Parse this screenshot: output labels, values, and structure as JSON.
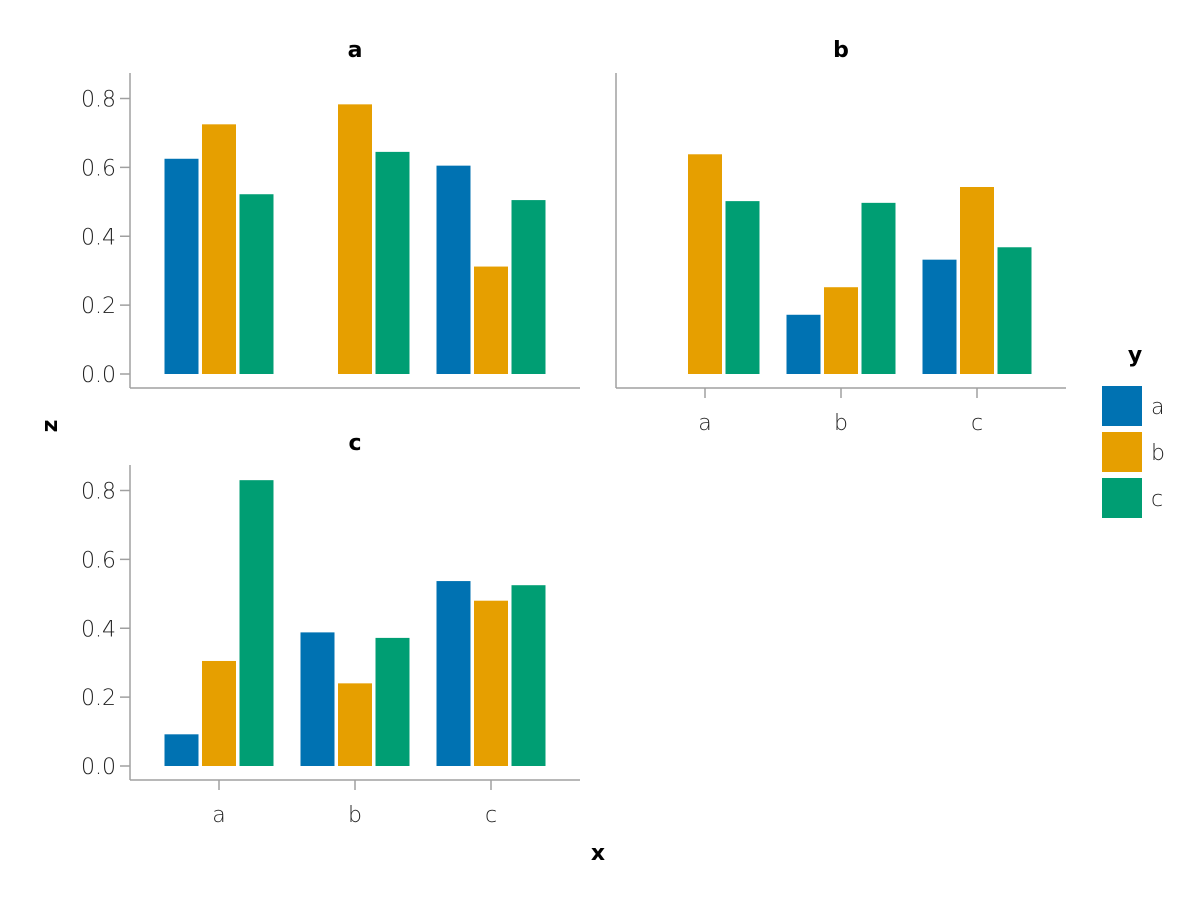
{
  "chart_data": {
    "type": "bar",
    "xlabel": "x",
    "ylabel": "z",
    "ylim": [
      0,
      0.88
    ],
    "yticks": [
      "0.0",
      "0.2",
      "0.4",
      "0.6",
      "0.8"
    ],
    "categories": [
      "a",
      "b",
      "c"
    ],
    "legend": {
      "title": "y",
      "placement": "right",
      "entries": [
        {
          "label": "a",
          "color": "#0072b2"
        },
        {
          "label": "b",
          "color": "#e69f00"
        },
        {
          "label": "c",
          "color": "#009e73"
        }
      ]
    },
    "facets": [
      {
        "title": "a",
        "series": [
          {
            "name": "a",
            "values": [
              0.625,
              null,
              0.605
            ]
          },
          {
            "name": "b",
            "values": [
              0.725,
              0.783,
              0.312
            ]
          },
          {
            "name": "c",
            "values": [
              0.522,
              0.645,
              0.505
            ]
          }
        ]
      },
      {
        "title": "b",
        "series": [
          {
            "name": "a",
            "values": [
              null,
              0.172,
              0.332
            ]
          },
          {
            "name": "b",
            "values": [
              0.638,
              0.252,
              0.543
            ]
          },
          {
            "name": "c",
            "values": [
              0.502,
              0.497,
              0.368
            ]
          }
        ]
      },
      {
        "title": "c",
        "series": [
          {
            "name": "a",
            "values": [
              0.092,
              0.388,
              0.537
            ]
          },
          {
            "name": "b",
            "values": [
              0.305,
              0.24,
              0.48
            ]
          },
          {
            "name": "c",
            "values": [
              0.83,
              0.372,
              0.525
            ]
          }
        ]
      }
    ]
  }
}
